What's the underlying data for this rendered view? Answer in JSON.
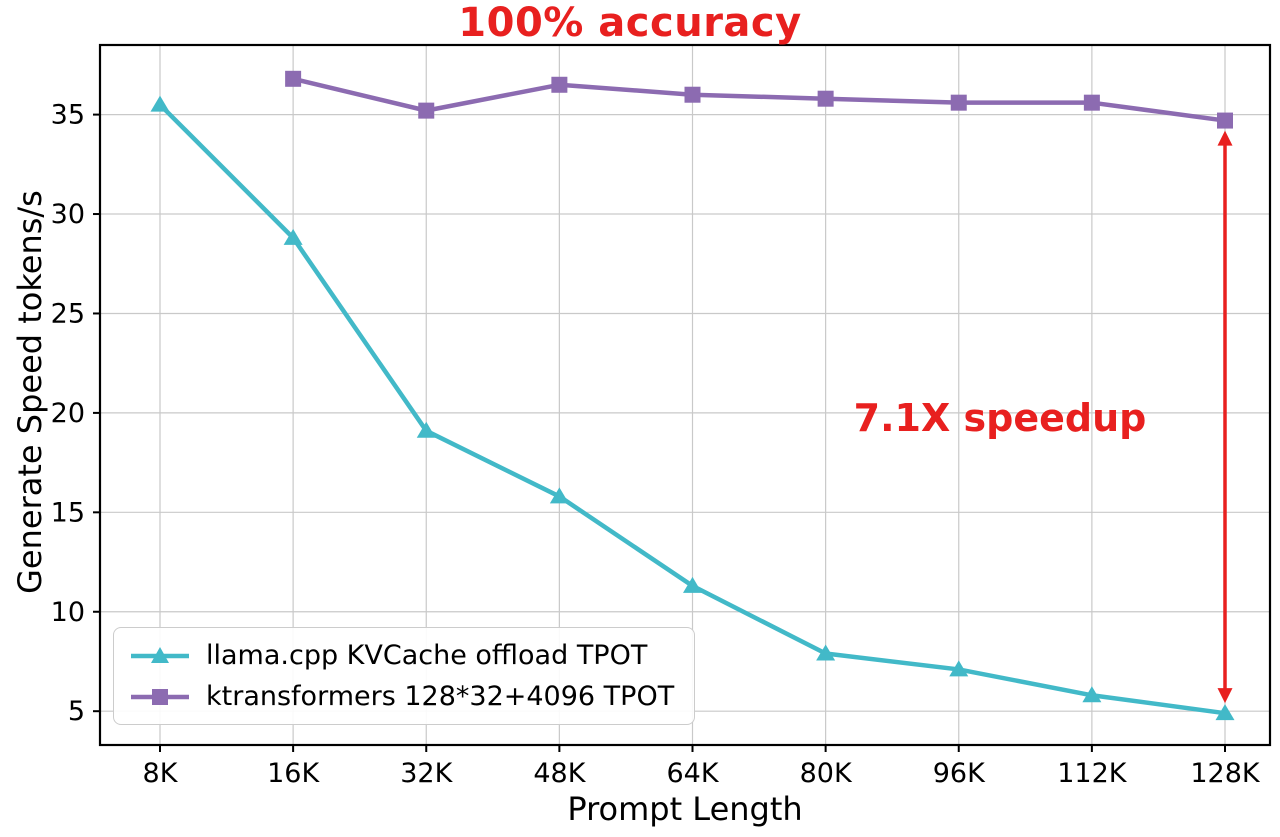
{
  "chart_data": {
    "type": "line",
    "title": "100% accuracy",
    "xlabel": "Prompt Length",
    "ylabel": "Generate Speed tokens/s",
    "categories": [
      "8K",
      "16K",
      "32K",
      "48K",
      "64K",
      "80K",
      "96K",
      "112K",
      "128K"
    ],
    "yticks": [
      5,
      10,
      15,
      20,
      25,
      30,
      35
    ],
    "ylim": [
      3.3,
      38.5
    ],
    "grid": true,
    "legend_position": "lower left",
    "series": [
      {
        "name": "llama.cpp KVCache offload TPOT",
        "color": "#42b9c8",
        "marker": "triangle",
        "values": [
          35.5,
          28.8,
          19.1,
          15.8,
          11.3,
          7.9,
          7.1,
          5.8,
          4.9
        ]
      },
      {
        "name": "ktransformers 128*32+4096 TPOT",
        "color": "#8c6bb1",
        "marker": "square",
        "values": [
          null,
          36.8,
          35.2,
          36.5,
          36.0,
          35.8,
          35.6,
          35.6,
          34.7
        ]
      }
    ],
    "annotations": {
      "accuracy_label": "100% accuracy",
      "speedup_label": "7.1X speedup",
      "annotation_color": "#e8201f",
      "arrow": {
        "category": "128K",
        "from": 34.7,
        "to": 4.9
      }
    },
    "axis_color": "#000000",
    "grid_color": "#c9c9c9"
  }
}
